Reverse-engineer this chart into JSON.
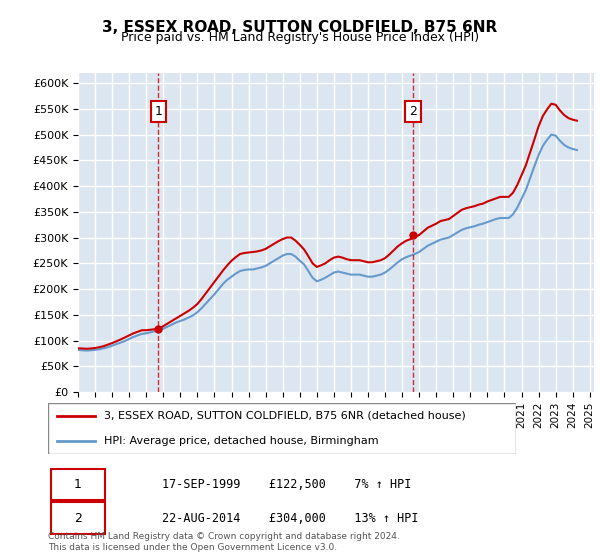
{
  "title": "3, ESSEX ROAD, SUTTON COLDFIELD, B75 6NR",
  "subtitle": "Price paid vs. HM Land Registry's House Price Index (HPI)",
  "ylabel_ticks": [
    0,
    50000,
    100000,
    150000,
    200000,
    250000,
    300000,
    350000,
    400000,
    450000,
    500000,
    550000,
    600000
  ],
  "ylim": [
    0,
    620000
  ],
  "sale1_date": 1999.71,
  "sale1_price": 122500,
  "sale1_label": "1",
  "sale1_text": "17-SEP-1999    £122,500    7% ↑ HPI",
  "sale2_date": 2014.64,
  "sale2_price": 304000,
  "sale2_label": "2",
  "sale2_text": "22-AUG-2014    £304,000    13% ↑ HPI",
  "line1_label": "3, ESSEX ROAD, SUTTON COLDFIELD, B75 6NR (detached house)",
  "line2_label": "HPI: Average price, detached house, Birmingham",
  "line1_color": "#cc0000",
  "line2_color": "#6699cc",
  "background_color": "#dce6f1",
  "grid_color": "#ffffff",
  "footnote": "Contains HM Land Registry data © Crown copyright and database right 2024.\nThis data is licensed under the Open Government Licence v3.0.",
  "hpi_years": [
    1995.0,
    1995.25,
    1995.5,
    1995.75,
    1996.0,
    1996.25,
    1996.5,
    1996.75,
    1997.0,
    1997.25,
    1997.5,
    1997.75,
    1998.0,
    1998.25,
    1998.5,
    1998.75,
    1999.0,
    1999.25,
    1999.5,
    1999.75,
    2000.0,
    2000.25,
    2000.5,
    2000.75,
    2001.0,
    2001.25,
    2001.5,
    2001.75,
    2002.0,
    2002.25,
    2002.5,
    2002.75,
    2003.0,
    2003.25,
    2003.5,
    2003.75,
    2004.0,
    2004.25,
    2004.5,
    2004.75,
    2005.0,
    2005.25,
    2005.5,
    2005.75,
    2006.0,
    2006.25,
    2006.5,
    2006.75,
    2007.0,
    2007.25,
    2007.5,
    2007.75,
    2008.0,
    2008.25,
    2008.5,
    2008.75,
    2009.0,
    2009.25,
    2009.5,
    2009.75,
    2010.0,
    2010.25,
    2010.5,
    2010.75,
    2011.0,
    2011.25,
    2011.5,
    2011.75,
    2012.0,
    2012.25,
    2012.5,
    2012.75,
    2013.0,
    2013.25,
    2013.5,
    2013.75,
    2014.0,
    2014.25,
    2014.5,
    2014.75,
    2015.0,
    2015.25,
    2015.5,
    2015.75,
    2016.0,
    2016.25,
    2016.5,
    2016.75,
    2017.0,
    2017.25,
    2017.5,
    2017.75,
    2018.0,
    2018.25,
    2018.5,
    2018.75,
    2019.0,
    2019.25,
    2019.5,
    2019.75,
    2020.0,
    2020.25,
    2020.5,
    2020.75,
    2021.0,
    2021.25,
    2021.5,
    2021.75,
    2022.0,
    2022.25,
    2022.5,
    2022.75,
    2023.0,
    2023.25,
    2023.5,
    2023.75,
    2024.0,
    2024.25
  ],
  "hpi_values": [
    82000,
    81000,
    80500,
    81000,
    82000,
    83000,
    85000,
    87000,
    90000,
    93000,
    96000,
    99000,
    103000,
    107000,
    110000,
    113000,
    114000,
    116000,
    118000,
    120000,
    123000,
    127000,
    131000,
    135000,
    138000,
    141000,
    145000,
    149000,
    155000,
    163000,
    172000,
    181000,
    190000,
    200000,
    210000,
    218000,
    224000,
    230000,
    235000,
    237000,
    238000,
    238000,
    240000,
    242000,
    245000,
    250000,
    255000,
    260000,
    265000,
    268000,
    268000,
    263000,
    255000,
    248000,
    235000,
    222000,
    215000,
    218000,
    222000,
    227000,
    232000,
    234000,
    232000,
    230000,
    228000,
    228000,
    228000,
    226000,
    224000,
    224000,
    226000,
    228000,
    232000,
    238000,
    245000,
    252000,
    258000,
    262000,
    265000,
    268000,
    272000,
    278000,
    284000,
    288000,
    292000,
    296000,
    298000,
    300000,
    305000,
    310000,
    315000,
    318000,
    320000,
    322000,
    325000,
    327000,
    330000,
    333000,
    336000,
    338000,
    338000,
    338000,
    345000,
    358000,
    375000,
    392000,
    415000,
    438000,
    460000,
    478000,
    490000,
    500000,
    498000,
    488000,
    480000,
    475000,
    472000,
    470000
  ],
  "prop_years": [
    1995.0,
    1995.25,
    1995.5,
    1995.75,
    1996.0,
    1996.25,
    1996.5,
    1996.75,
    1997.0,
    1997.25,
    1997.5,
    1997.75,
    1998.0,
    1998.25,
    1998.5,
    1998.75,
    1999.0,
    1999.25,
    1999.5,
    1999.75,
    2000.0,
    2000.25,
    2000.5,
    2000.75,
    2001.0,
    2001.25,
    2001.5,
    2001.75,
    2002.0,
    2002.25,
    2002.5,
    2002.75,
    2003.0,
    2003.25,
    2003.5,
    2003.75,
    2004.0,
    2004.25,
    2004.5,
    2004.75,
    2005.0,
    2005.25,
    2005.5,
    2005.75,
    2006.0,
    2006.25,
    2006.5,
    2006.75,
    2007.0,
    2007.25,
    2007.5,
    2007.75,
    2008.0,
    2008.25,
    2008.5,
    2008.75,
    2009.0,
    2009.25,
    2009.5,
    2009.75,
    2010.0,
    2010.25,
    2010.5,
    2010.75,
    2011.0,
    2011.25,
    2011.5,
    2011.75,
    2012.0,
    2012.25,
    2012.5,
    2012.75,
    2013.0,
    2013.25,
    2013.5,
    2013.75,
    2014.0,
    2014.25,
    2014.5,
    2014.75,
    2015.0,
    2015.25,
    2015.5,
    2015.75,
    2016.0,
    2016.25,
    2016.5,
    2016.75,
    2017.0,
    2017.25,
    2017.5,
    2017.75,
    2018.0,
    2018.25,
    2018.5,
    2018.75,
    2019.0,
    2019.25,
    2019.5,
    2019.75,
    2020.0,
    2020.25,
    2020.5,
    2020.75,
    2021.0,
    2021.25,
    2021.5,
    2021.75,
    2022.0,
    2022.25,
    2022.5,
    2022.75,
    2023.0,
    2023.25,
    2023.5,
    2023.75,
    2024.0,
    2024.25
  ],
  "prop_values": [
    85000,
    84500,
    84000,
    84500,
    85500,
    87000,
    89000,
    92000,
    95000,
    98500,
    102000,
    106000,
    110000,
    114000,
    117000,
    120000,
    120000,
    121000,
    122000,
    122500,
    128000,
    133000,
    138000,
    143000,
    148000,
    153000,
    158000,
    164000,
    171000,
    181000,
    192000,
    203000,
    214000,
    225000,
    236000,
    246000,
    255000,
    262000,
    268000,
    270000,
    271000,
    272000,
    273000,
    275000,
    278000,
    283000,
    288000,
    293000,
    297000,
    300000,
    300000,
    294000,
    286000,
    277000,
    264000,
    250000,
    243000,
    246000,
    250000,
    256000,
    261000,
    263000,
    261000,
    258000,
    256000,
    256000,
    256000,
    254000,
    252000,
    252000,
    254000,
    256000,
    260000,
    267000,
    275000,
    283000,
    289000,
    294000,
    297000,
    300500,
    305000,
    312000,
    319000,
    323000,
    327000,
    332000,
    334000,
    336000,
    342000,
    348000,
    354000,
    357000,
    359000,
    361000,
    364000,
    366000,
    370000,
    373000,
    376000,
    379000,
    379000,
    379000,
    387000,
    402000,
    421000,
    440000,
    465000,
    490000,
    516000,
    536000,
    549000,
    560000,
    558000,
    547000,
    538000,
    532000,
    529000,
    527000
  ]
}
